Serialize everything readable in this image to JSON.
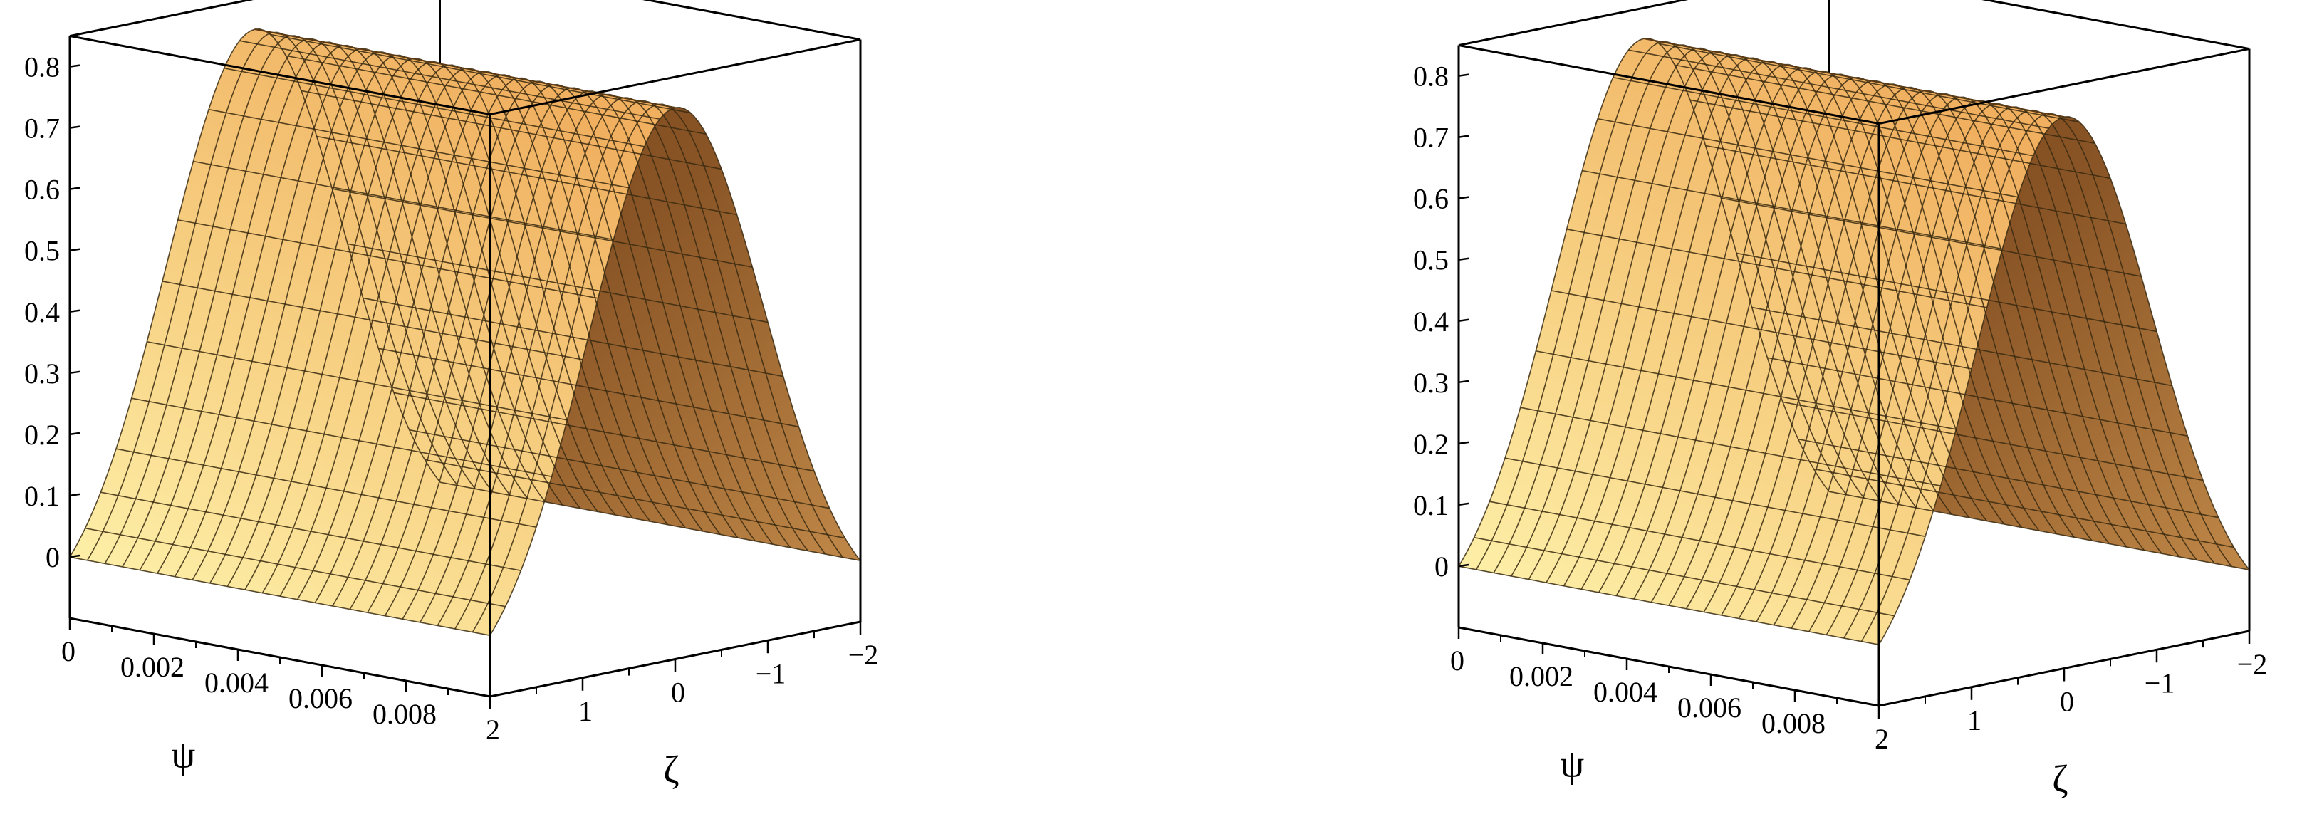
{
  "chart_data": [
    {
      "type": "surface3d",
      "title": "",
      "xlabel": "ψ",
      "ylabel": "ζ",
      "zlabel": "",
      "x_ticks": [
        "0",
        "0.002",
        "0.004",
        "0.006",
        "0.008"
      ],
      "y_ticks": [
        "2",
        "1",
        "0",
        "−1",
        "−2"
      ],
      "z_ticks": [
        "0",
        "0.1",
        "0.2",
        "0.3",
        "0.4",
        "0.5",
        "0.6",
        "0.7",
        "0.8"
      ],
      "xlim": [
        0,
        0.01
      ],
      "ylim": [
        2,
        -2
      ],
      "zlim": [
        -0.1,
        0.85
      ],
      "surface": {
        "shape": "bell profile in ζ, constant along ψ",
        "peak": 0.8,
        "peak_at_zeta": 0,
        "baseline": -0.1,
        "zeta_samples": [
          -2,
          -1.5,
          -1,
          -0.5,
          0,
          0.5,
          1,
          1.5,
          2
        ],
        "z_samples": [
          -0.1,
          -0.02,
          0.23,
          0.6,
          0.8,
          0.6,
          0.23,
          -0.02,
          -0.1
        ]
      },
      "colors": {
        "light": "#fff4a8",
        "mid": "#f2b863",
        "shadow": "#7e4b1c",
        "grid": "#3a2a10"
      }
    },
    {
      "type": "surface3d",
      "title": "",
      "xlabel": "ψ",
      "ylabel": "ζ",
      "zlabel": "",
      "x_ticks": [
        "0",
        "0.002",
        "0.004",
        "0.006",
        "0.008"
      ],
      "y_ticks": [
        "2",
        "1",
        "0",
        "−1",
        "−2"
      ],
      "z_ticks": [
        "0",
        "0.1",
        "0.2",
        "0.3",
        "0.4",
        "0.5",
        "0.6",
        "0.7",
        "0.8"
      ],
      "xlim": [
        0,
        0.01
      ],
      "ylim": [
        2,
        -2
      ],
      "zlim": [
        -0.1,
        0.85
      ],
      "surface": {
        "shape": "bell profile in ζ, constant along ψ",
        "peak": 0.8,
        "peak_at_zeta": 0,
        "baseline": -0.1,
        "zeta_samples": [
          -2,
          -1.5,
          -1,
          -0.5,
          0,
          0.5,
          1,
          1.5,
          2
        ],
        "z_samples": [
          -0.1,
          -0.02,
          0.23,
          0.6,
          0.8,
          0.6,
          0.23,
          -0.02,
          -0.1
        ]
      },
      "colors": {
        "light": "#fff4a8",
        "mid": "#f2b863",
        "shadow": "#7e4b1c",
        "grid": "#3a2a10"
      }
    }
  ]
}
